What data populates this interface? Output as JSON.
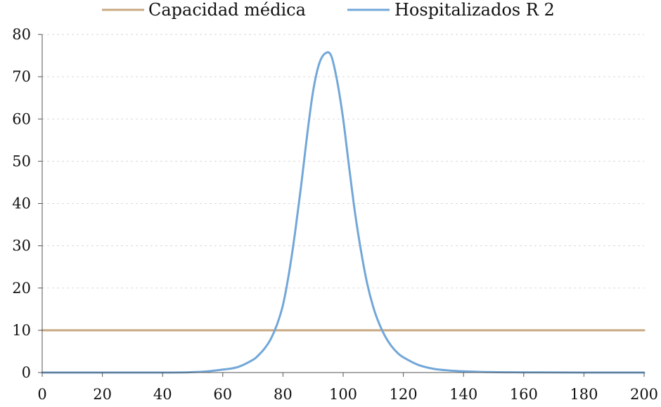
{
  "chart_data": {
    "type": "line",
    "title": "",
    "xlabel": "",
    "ylabel": "",
    "xlim": [
      0,
      200
    ],
    "ylim": [
      0,
      80
    ],
    "x_ticks": [
      0,
      20,
      40,
      60,
      80,
      100,
      120,
      140,
      160,
      180,
      200
    ],
    "y_ticks": [
      0,
      10,
      20,
      30,
      40,
      50,
      60,
      70,
      80
    ],
    "x_tick_labels": [
      "0",
      "20",
      "40",
      "60",
      "80",
      "100",
      "120",
      "140",
      "160",
      "180",
      "200"
    ],
    "y_tick_labels": [
      "0",
      "10",
      "20",
      "30",
      "40",
      "50",
      "60",
      "70",
      "80"
    ],
    "grid": "horizontal dashed",
    "legend_position": "top-center",
    "series": [
      {
        "name": "Capacidad médica",
        "color": "#c8a982",
        "x": [
          0,
          200
        ],
        "y": [
          10,
          10
        ]
      },
      {
        "name": "Hospitalizados R 2",
        "color": "#72a7d8",
        "x": [
          0,
          40,
          50,
          55,
          60,
          65,
          70,
          72,
          74,
          76,
          78,
          80,
          82,
          84,
          86,
          88,
          90,
          92,
          94,
          96,
          98,
          100,
          102,
          104,
          106,
          108,
          110,
          112,
          114,
          116,
          118,
          120,
          125,
          130,
          135,
          140,
          150,
          160,
          180,
          200
        ],
        "y": [
          0,
          0,
          0.1,
          0.3,
          0.7,
          1.3,
          3.0,
          4.2,
          5.8,
          8.0,
          11.3,
          16.0,
          23.5,
          33.0,
          44.0,
          56.0,
          66.5,
          73.0,
          75.5,
          75.0,
          69.0,
          60.0,
          48.5,
          37.5,
          28.5,
          21.0,
          15.5,
          11.5,
          8.5,
          6.3,
          4.7,
          3.6,
          1.8,
          0.9,
          0.5,
          0.3,
          0.1,
          0.05,
          0,
          0
        ]
      }
    ]
  }
}
